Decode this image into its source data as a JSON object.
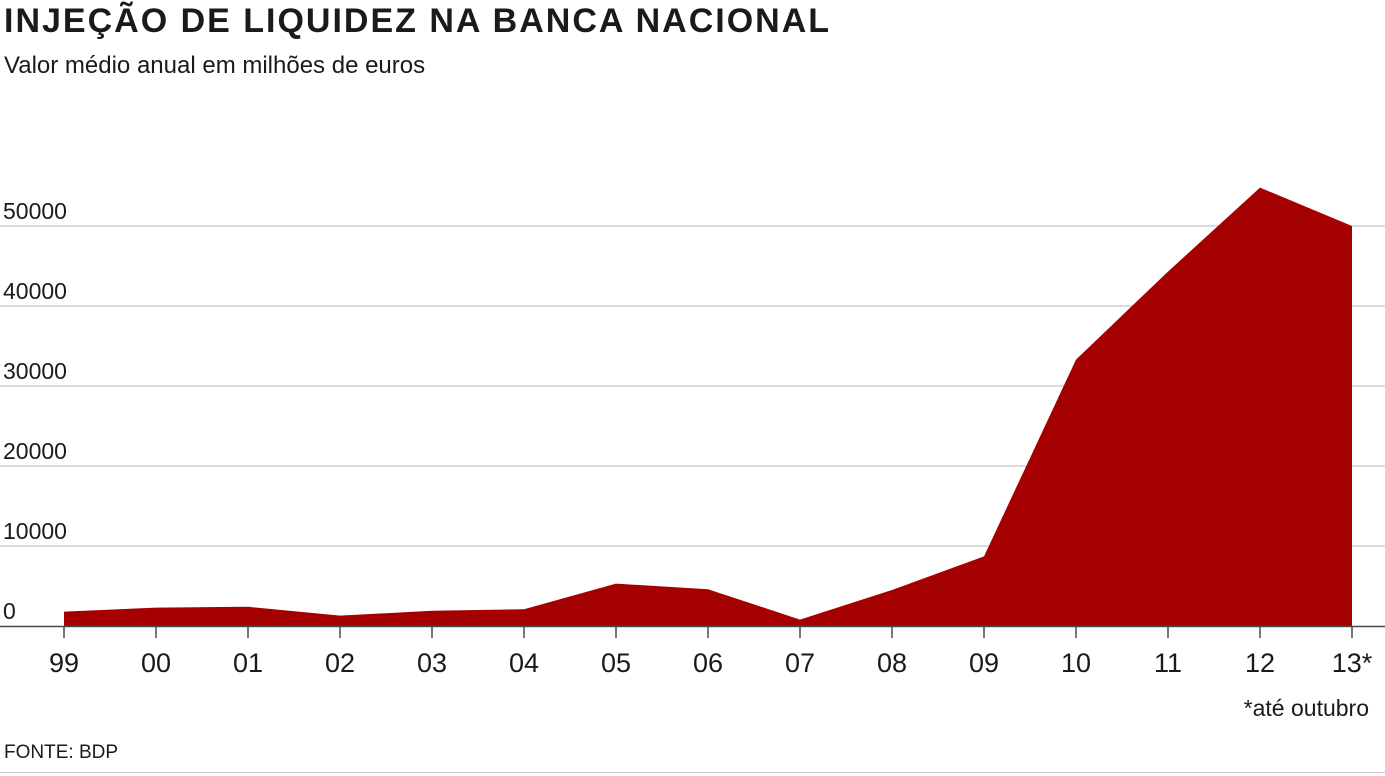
{
  "title": "INJEÇÃO DE LIQUIDEZ NA BANCA NACIONAL",
  "subtitle": "Valor médio anual em milhões de euros",
  "source": "FONTE: BDP",
  "colors": {
    "fill": "#a50000",
    "grid": "#b5b5b5",
    "axis": "#4a4a4a",
    "text": "#1a1a1a"
  },
  "chart_data": {
    "type": "area",
    "categories": [
      "99",
      "00",
      "01",
      "02",
      "03",
      "04",
      "05",
      "06",
      "07",
      "08",
      "09",
      "10",
      "11",
      "12",
      "13*"
    ],
    "series": [
      {
        "values": [
          1800,
          2300,
          2400,
          1300,
          1900,
          2100,
          5300,
          4600,
          800,
          4500,
          8700,
          33300,
          44300,
          54800,
          50000
        ]
      }
    ],
    "y_ticks": [
      0,
      10000,
      20000,
      30000,
      40000,
      50000
    ],
    "ylim": [
      0,
      57000
    ],
    "grid": true,
    "annotation": "*até outubro"
  }
}
